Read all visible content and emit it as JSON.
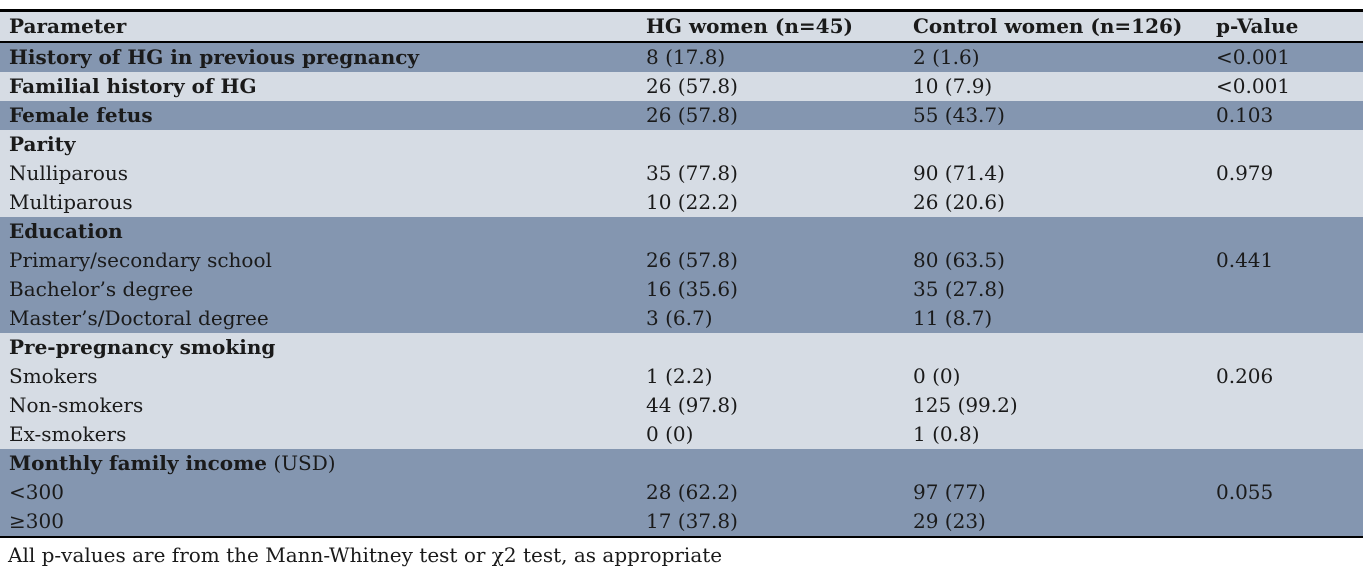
{
  "colors": {
    "row_dark": "#8496B0",
    "row_light": "#D6DCE4",
    "border": "#000000"
  },
  "table": {
    "columns": [
      "Parameter",
      "HG women (n=45)",
      "Control women (n=126)",
      "p-Value"
    ],
    "rows": [
      {
        "param": "History of HG in previous pregnancy",
        "suffix": "",
        "bold": true,
        "shade": "dark",
        "hg": "8 (17.8)",
        "control": "2 (1.6)",
        "p": "<0.001"
      },
      {
        "param": "Familial history of HG",
        "suffix": "",
        "bold": true,
        "shade": "light",
        "hg": "26 (57.8)",
        "control": "10 (7.9)",
        "p": "<0.001"
      },
      {
        "param": "Female fetus",
        "suffix": "",
        "bold": true,
        "shade": "dark",
        "hg": "26 (57.8)",
        "control": "55 (43.7)",
        "p": "0.103"
      },
      {
        "param": "Parity",
        "suffix": "",
        "bold": true,
        "shade": "light",
        "hg": "",
        "control": "",
        "p": ""
      },
      {
        "param": "Nulliparous",
        "suffix": "",
        "bold": false,
        "shade": "light",
        "hg": "35 (77.8)",
        "control": "90 (71.4)",
        "p": "0.979"
      },
      {
        "param": "Multiparous",
        "suffix": "",
        "bold": false,
        "shade": "light",
        "hg": "10 (22.2)",
        "control": "26 (20.6)",
        "p": ""
      },
      {
        "param": "Education",
        "suffix": "",
        "bold": true,
        "shade": "dark",
        "hg": "",
        "control": "",
        "p": ""
      },
      {
        "param": "Primary/secondary school",
        "suffix": "",
        "bold": false,
        "shade": "dark",
        "hg": "26 (57.8)",
        "control": "80 (63.5)",
        "p": "0.441"
      },
      {
        "param": "Bachelor’s degree",
        "suffix": "",
        "bold": false,
        "shade": "dark",
        "hg": "16 (35.6)",
        "control": "35 (27.8)",
        "p": ""
      },
      {
        "param": "Master’s/Doctoral degree",
        "suffix": "",
        "bold": false,
        "shade": "dark",
        "hg": "3 (6.7)",
        "control": "11 (8.7)",
        "p": ""
      },
      {
        "param": "Pre-pregnancy smoking",
        "suffix": "",
        "bold": true,
        "shade": "light",
        "hg": "",
        "control": "",
        "p": ""
      },
      {
        "param": "Smokers",
        "suffix": "",
        "bold": false,
        "shade": "light",
        "hg": "1 (2.2)",
        "control": "0 (0)",
        "p": "0.206"
      },
      {
        "param": "Non-smokers",
        "suffix": "",
        "bold": false,
        "shade": "light",
        "hg": "44 (97.8)",
        "control": "125 (99.2)",
        "p": ""
      },
      {
        "param": "Ex-smokers",
        "suffix": "",
        "bold": false,
        "shade": "light",
        "hg": "0 (0)",
        "control": "1 (0.8)",
        "p": ""
      },
      {
        "param": "Monthly family income",
        "suffix": " (USD)",
        "bold": true,
        "shade": "dark",
        "hg": "",
        "control": "",
        "p": ""
      },
      {
        "param": "<300",
        "suffix": "",
        "bold": false,
        "shade": "dark",
        "hg": "28 (62.2)",
        "control": "97 (77)",
        "p": "0.055"
      },
      {
        "param": "≥300",
        "suffix": "",
        "bold": false,
        "shade": "dark",
        "hg": "17 (37.8)",
        "control": "29 (23)",
        "p": ""
      }
    ],
    "footnote": "All p-values are from the Mann-Whitney test or χ2 test, as appropriate"
  }
}
